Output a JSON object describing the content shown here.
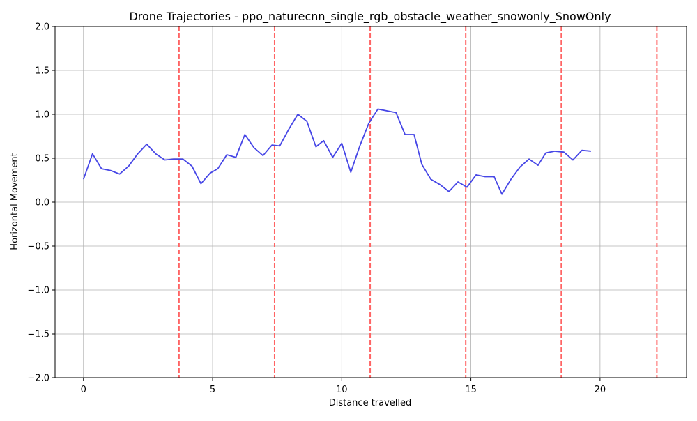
{
  "chart_data": {
    "type": "line",
    "title": "Drone Trajectories - ppo_naturecnn_single_rgb_obstacle_weather_snowonly_SnowOnly",
    "xlabel": "Distance travelled",
    "ylabel": "Horizontal Movement",
    "xlim": [
      -1.1,
      23.35
    ],
    "ylim": [
      -2.0,
      2.0
    ],
    "xticks": [
      0,
      5,
      10,
      15,
      20
    ],
    "xtick_labels": [
      "0",
      "5",
      "10",
      "15",
      "20"
    ],
    "yticks": [
      2.0,
      1.5,
      1.0,
      0.5,
      0.0,
      -0.5,
      -1.0,
      -1.5,
      -2.0
    ],
    "ytick_labels": [
      "2.0",
      "1.5",
      "1.0",
      "0.5",
      "0.0",
      "−0.5",
      "−1.0",
      "−1.5",
      "−2.0"
    ],
    "grid": true,
    "series": [
      {
        "color": "#4646e6",
        "x": [
          0,
          0.35,
          0.7,
          1.05,
          1.4,
          1.75,
          2.1,
          2.45,
          2.8,
          3.15,
          3.5,
          3.85,
          4.2,
          4.55,
          4.9,
          5.2,
          5.55,
          5.9,
          6.25,
          6.6,
          6.95,
          7.3,
          7.6,
          7.95,
          8.3,
          8.65,
          9.0,
          9.3,
          9.65,
          10.0,
          10.35,
          10.7,
          11.05,
          11.4,
          11.75,
          12.1,
          12.45,
          12.8,
          13.1,
          13.45,
          13.8,
          14.15,
          14.5,
          14.85,
          15.2,
          15.55,
          15.9,
          16.2,
          16.55,
          16.9,
          17.25,
          17.6,
          17.9,
          18.25,
          18.6,
          18.95,
          19.3,
          19.65
        ],
        "y": [
          0.26,
          0.55,
          0.38,
          0.36,
          0.32,
          0.41,
          0.55,
          0.66,
          0.55,
          0.48,
          0.49,
          0.49,
          0.41,
          0.21,
          0.33,
          0.38,
          0.54,
          0.51,
          0.77,
          0.62,
          0.53,
          0.65,
          0.64,
          0.83,
          1.0,
          0.92,
          0.63,
          0.7,
          0.51,
          0.67,
          0.34,
          0.64,
          0.9,
          1.06,
          1.04,
          1.02,
          0.77,
          0.77,
          0.43,
          0.26,
          0.2,
          0.12,
          0.23,
          0.17,
          0.31,
          0.29,
          0.29,
          0.09,
          0.26,
          0.4,
          0.49,
          0.42,
          0.56,
          0.58,
          0.57,
          0.48,
          0.59,
          0.58
        ]
      }
    ],
    "vlines": {
      "color": "#ff6464",
      "style": "dashed",
      "x": [
        3.7,
        7.4,
        11.1,
        14.8,
        18.5,
        22.2
      ]
    }
  }
}
